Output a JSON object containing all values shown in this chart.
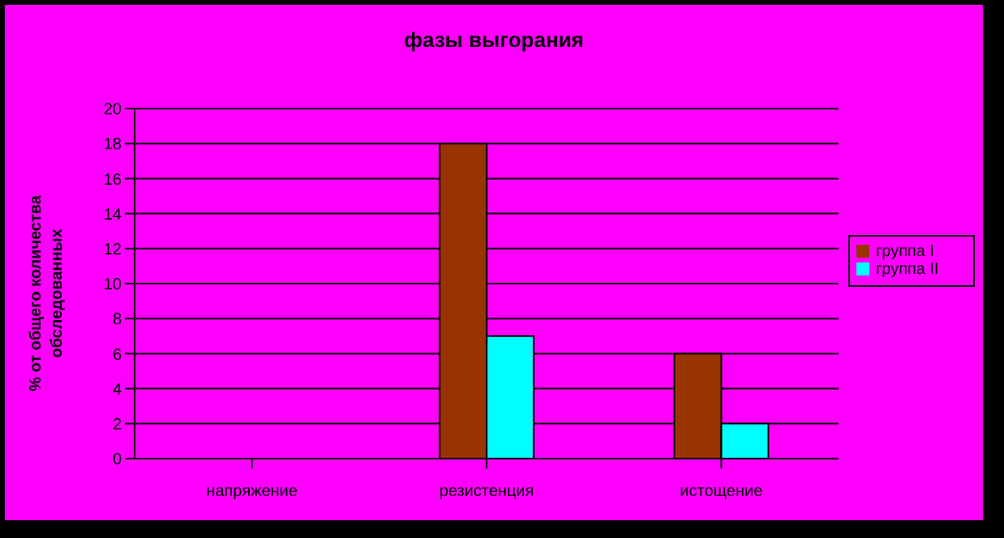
{
  "chart_data": {
    "type": "bar",
    "title": "фазы выгорания",
    "ylabel": "% от общего количества\nобследованных",
    "categories": [
      "напряжение",
      "резистенция",
      "истощение"
    ],
    "series": [
      {
        "name": "группа I",
        "color": "#993300",
        "values": [
          0,
          18,
          6
        ]
      },
      {
        "name": "группа II",
        "color": "#00ffff",
        "values": [
          0,
          7,
          2
        ]
      }
    ],
    "ylim": [
      0,
      20
    ],
    "yticks": [
      0,
      2,
      4,
      6,
      8,
      10,
      12,
      14,
      16,
      18,
      20
    ],
    "grid": "y",
    "legend": "right"
  }
}
